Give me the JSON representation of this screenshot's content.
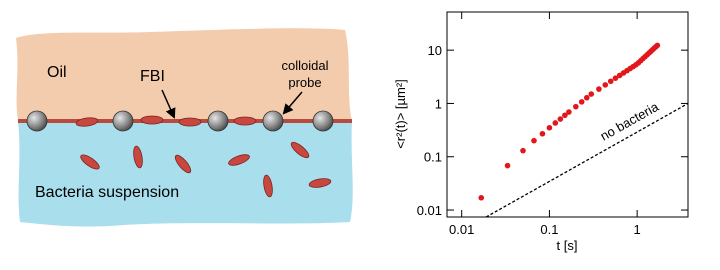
{
  "diagram": {
    "labels": {
      "oil": "Oil",
      "fbi": "FBI",
      "probe_line1": "colloidal",
      "probe_line2": "probe",
      "suspension": "Bacteria suspension"
    }
  },
  "chart_data": {
    "type": "scatter",
    "xlabel": "t [s]",
    "ylabel": "<r²(t)> [µm²]",
    "xscale": "log",
    "yscale": "log",
    "xlim": [
      0.0068,
      3.8
    ],
    "ylim": [
      0.0074,
      52
    ],
    "xticks": [
      0.01,
      0.1,
      1
    ],
    "yticks": [
      0.01,
      0.1,
      1,
      10
    ],
    "series": [
      {
        "color": "#e3161b",
        "x": [
          0.0167,
          0.0333,
          0.05,
          0.0667,
          0.0833,
          0.1,
          0.1167,
          0.1333,
          0.15,
          0.1667,
          0.2,
          0.2333,
          0.2667,
          0.3,
          0.3667,
          0.4333,
          0.5,
          0.5667,
          0.6333,
          0.7,
          0.7667,
          0.8333,
          0.9,
          0.9667,
          1.0333,
          1.1,
          1.1667,
          1.2333,
          1.3,
          1.3667,
          1.4333,
          1.5,
          1.5667,
          1.6333,
          1.7
        ],
        "values": [
          0.017,
          0.068,
          0.13,
          0.2,
          0.27,
          0.35,
          0.43,
          0.51,
          0.6,
          0.69,
          0.87,
          1.07,
          1.28,
          1.5,
          1.86,
          2.23,
          2.61,
          2.98,
          3.36,
          3.74,
          4.13,
          4.52,
          4.91,
          5.31,
          5.78,
          6.36,
          6.95,
          7.56,
          8.2,
          8.84,
          9.5,
          10.2,
          10.9,
          11.6,
          12.3
        ]
      },
      {
        "name": "no bacteria",
        "color": "#000000",
        "dashed": true,
        "x": [
          0.019,
          3.8
        ],
        "values": [
          0.0074,
          1.0
        ]
      }
    ]
  }
}
